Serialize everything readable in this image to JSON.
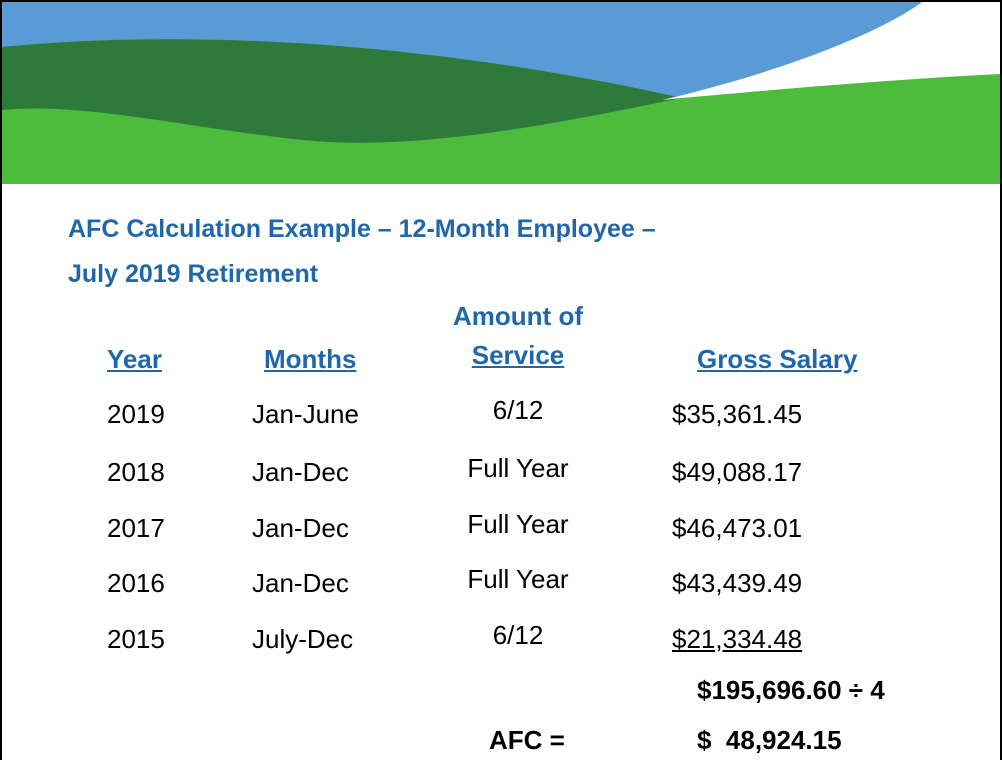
{
  "title": [
    "AFC Calculation Example – 12-Month Employee –",
    "July 2019 Retirement"
  ],
  "table": {
    "header": [
      "Year",
      "Months",
      [
        "Amount of",
        "Service"
      ],
      "Gross Salary"
    ],
    "rows": [
      [
        "2019",
        "Jan-June",
        "6/12",
        "$35,361.45"
      ],
      [
        "2018",
        "Jan-Dec",
        "Full Year",
        "$49,088.17"
      ],
      [
        "2017",
        "Jan-Dec",
        "Full Year",
        "$46,473.01"
      ],
      [
        "2016",
        "Jan-Dec",
        "Full Year",
        "$43,439.49"
      ],
      [
        "2015",
        "July-Dec",
        "6/12",
        "$21,334.48"
      ]
    ]
  },
  "total": "$195,696.60 ÷ 4",
  "result": {
    "label": "AFC =",
    "value": "$  48,924.15"
  }
}
